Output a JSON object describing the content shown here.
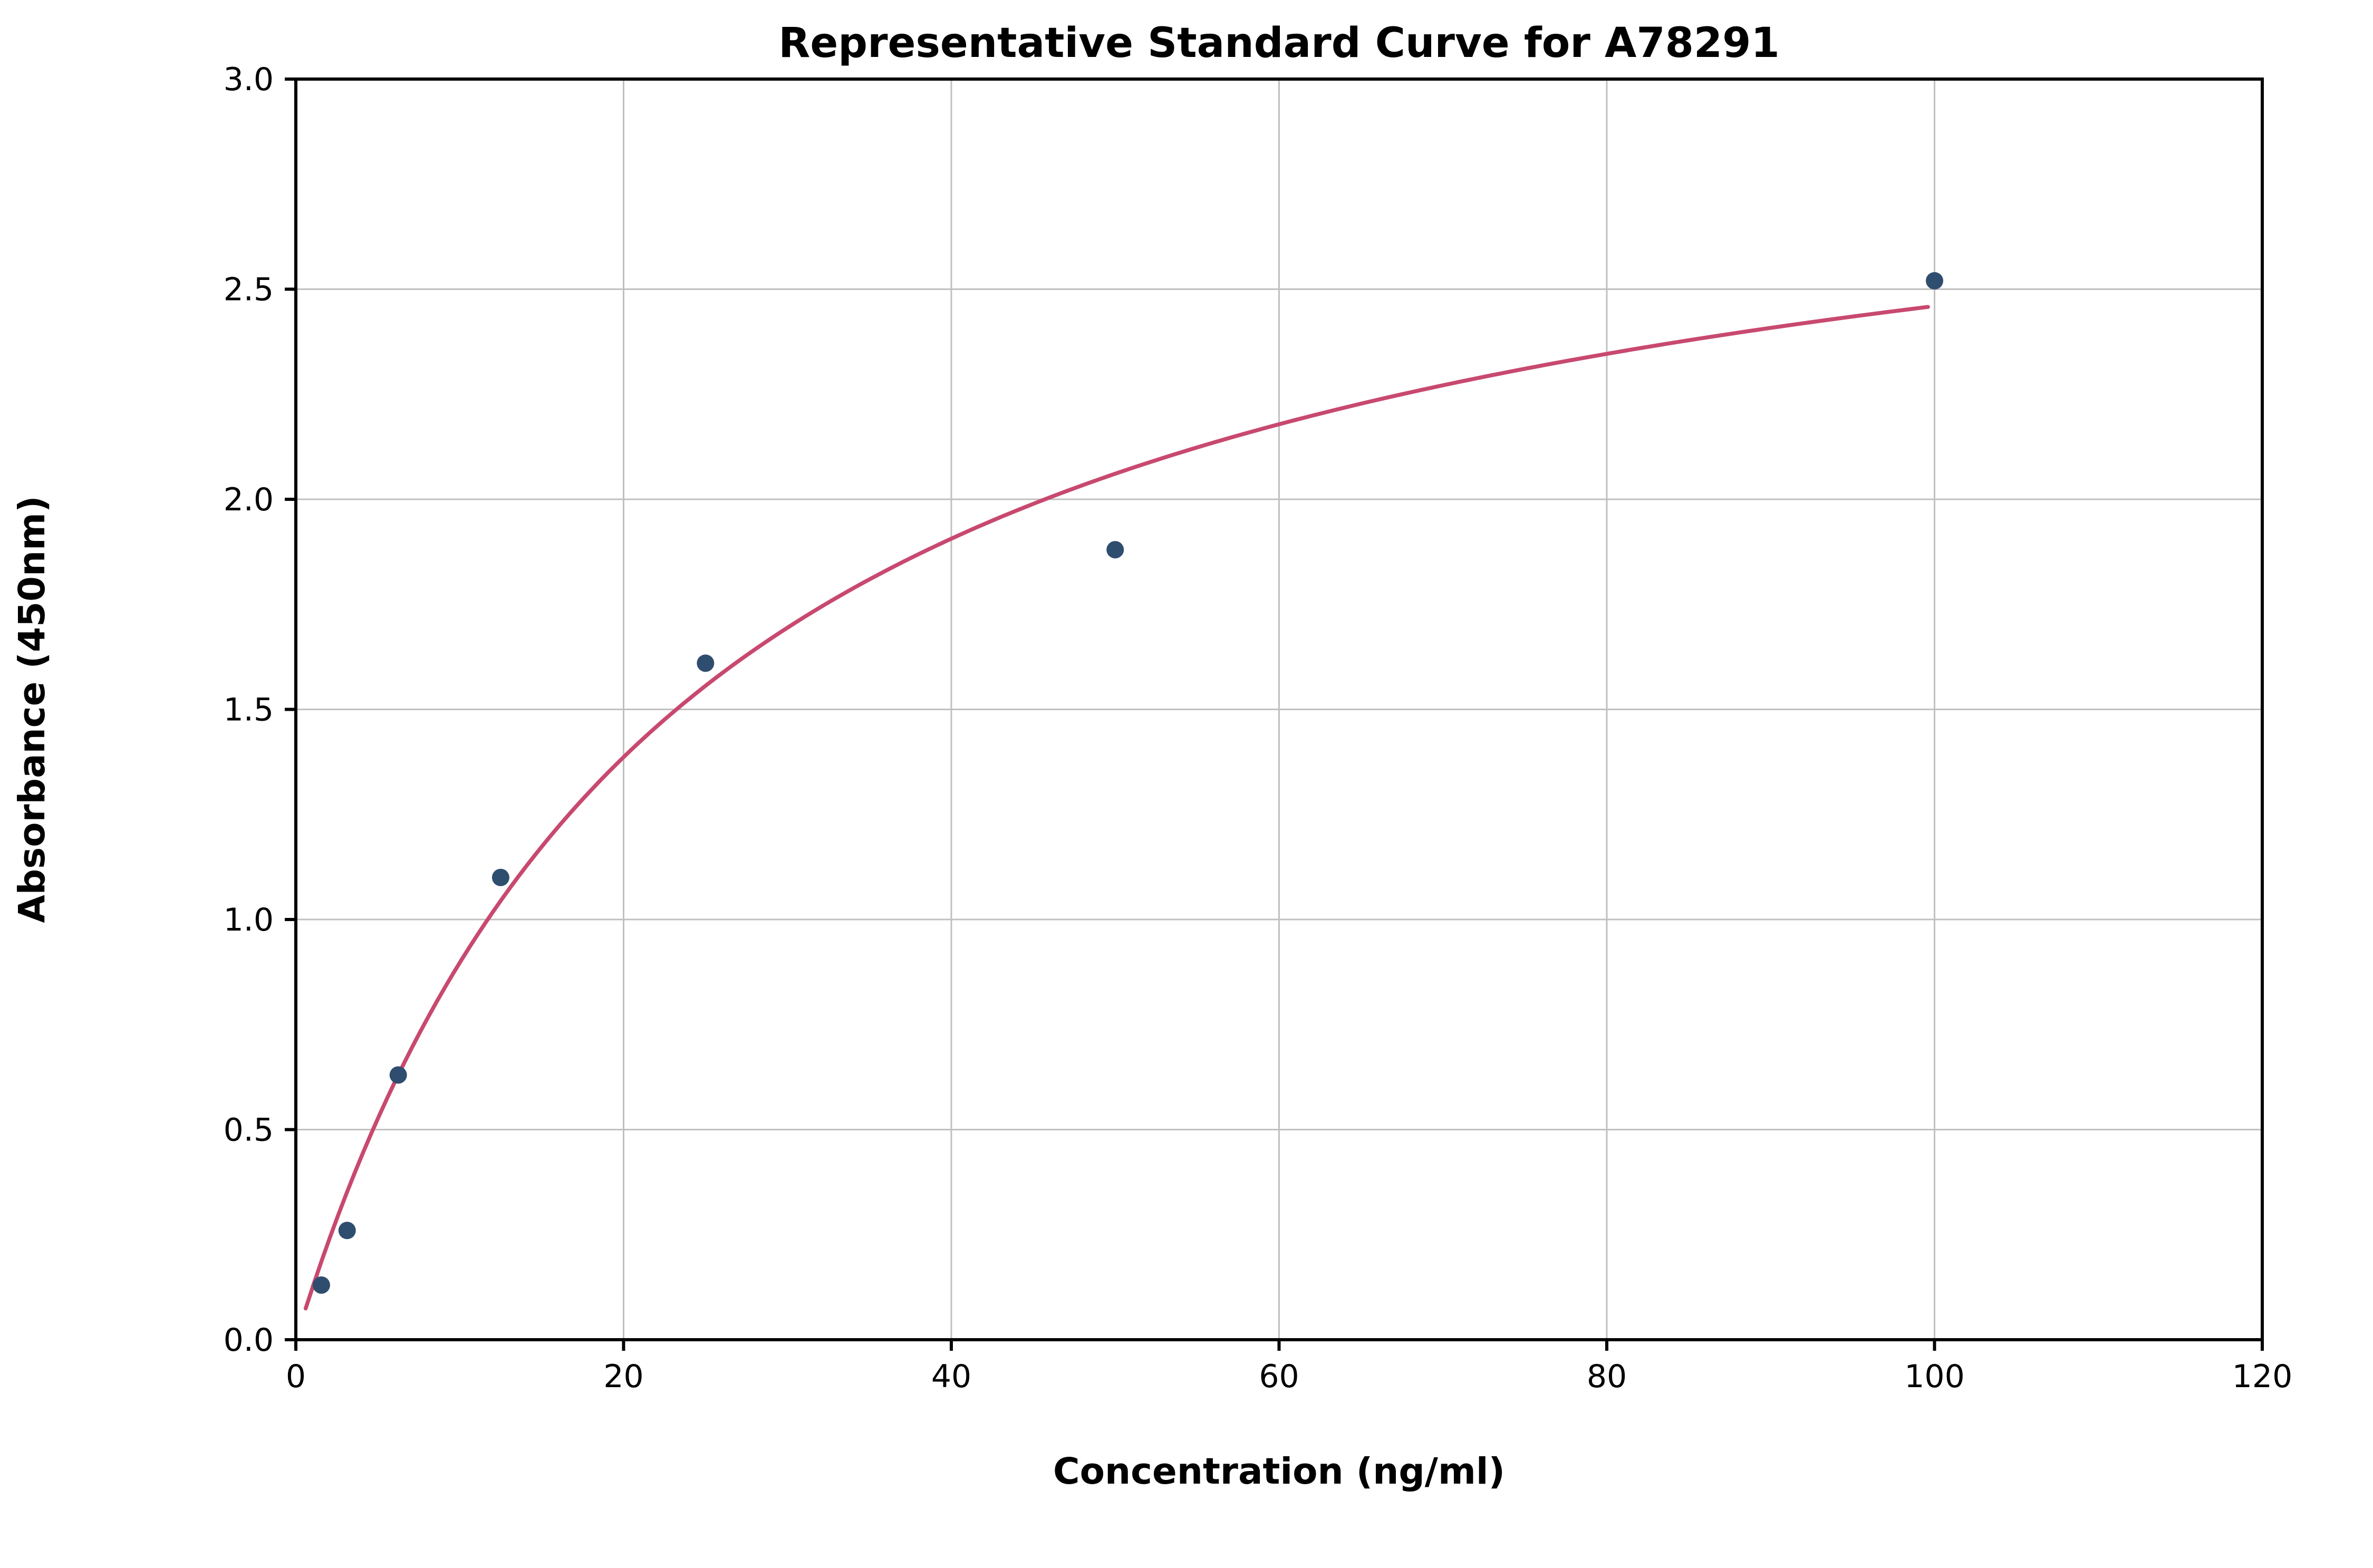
{
  "chart_data": {
    "type": "scatter",
    "title": "Representative Standard Curve for A78291",
    "xlabel": "Concentration (ng/ml)",
    "ylabel": "Absorbance (450nm)",
    "xlim": [
      0,
      120
    ],
    "ylim": [
      0,
      3.0
    ],
    "x_ticks": [
      0,
      20,
      40,
      60,
      80,
      100,
      120
    ],
    "y_ticks": [
      0.0,
      0.5,
      1.0,
      1.5,
      2.0,
      2.5,
      3.0
    ],
    "grid": true,
    "legend": "none",
    "points": [
      {
        "x": 1.56,
        "y": 0.13
      },
      {
        "x": 3.13,
        "y": 0.26
      },
      {
        "x": 6.25,
        "y": 0.63
      },
      {
        "x": 12.5,
        "y": 1.1
      },
      {
        "x": 25,
        "y": 1.61
      },
      {
        "x": 50,
        "y": 1.88
      },
      {
        "x": 100,
        "y": 2.52
      }
    ],
    "fit": {
      "type": "michaelis_menten",
      "a": 3.05,
      "b": 24,
      "x_start": 0.6,
      "x_end": 100
    },
    "colors": {
      "point": "#2f4d6e",
      "curve": "#c8496f",
      "grid": "#c0c0c0",
      "axis": "#000000"
    }
  }
}
